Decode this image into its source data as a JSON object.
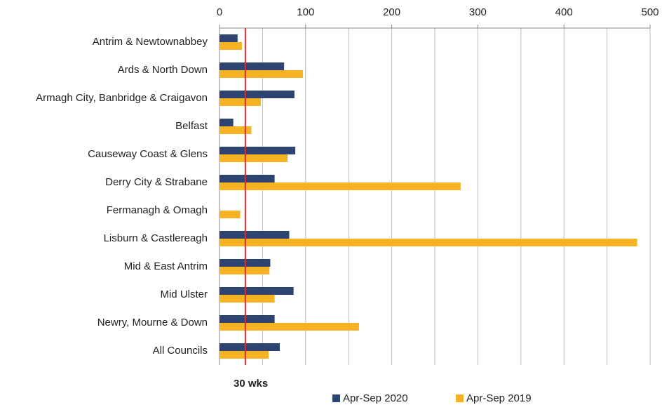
{
  "chart_data": {
    "type": "hbar",
    "categories": [
      "Antrim & Newtownabbey",
      "Ards & North Down",
      "Armagh City, Banbridge & Craigavon",
      "Belfast",
      "Causeway Coast & Glens",
      "Derry City & Strabane",
      "Fermanagh & Omagh",
      "Lisburn & Castlereagh",
      "Mid & East Antrim",
      "Mid Ulster",
      "Newry, Mourne & Down",
      "All Councils"
    ],
    "series": [
      {
        "name": "Apr-Sep 2020",
        "color": "#2e4470",
        "values": [
          21,
          75,
          87,
          16,
          88,
          64,
          null,
          81,
          59,
          86,
          64,
          70
        ]
      },
      {
        "name": "Apr-Sep 2019",
        "color": "#f5b323",
        "values": [
          26,
          97,
          48,
          37,
          79,
          280,
          24,
          485,
          58,
          64,
          162,
          57
        ]
      }
    ],
    "xlim": [
      0,
      500
    ],
    "xticks": [
      0,
      100,
      200,
      300,
      400,
      500
    ],
    "minor_xticks": [
      50,
      150,
      250,
      350,
      450
    ],
    "grid": true,
    "reference_line": {
      "value": 30,
      "label": "30 wks",
      "color": "#e8262b"
    },
    "legend": "bottom"
  }
}
